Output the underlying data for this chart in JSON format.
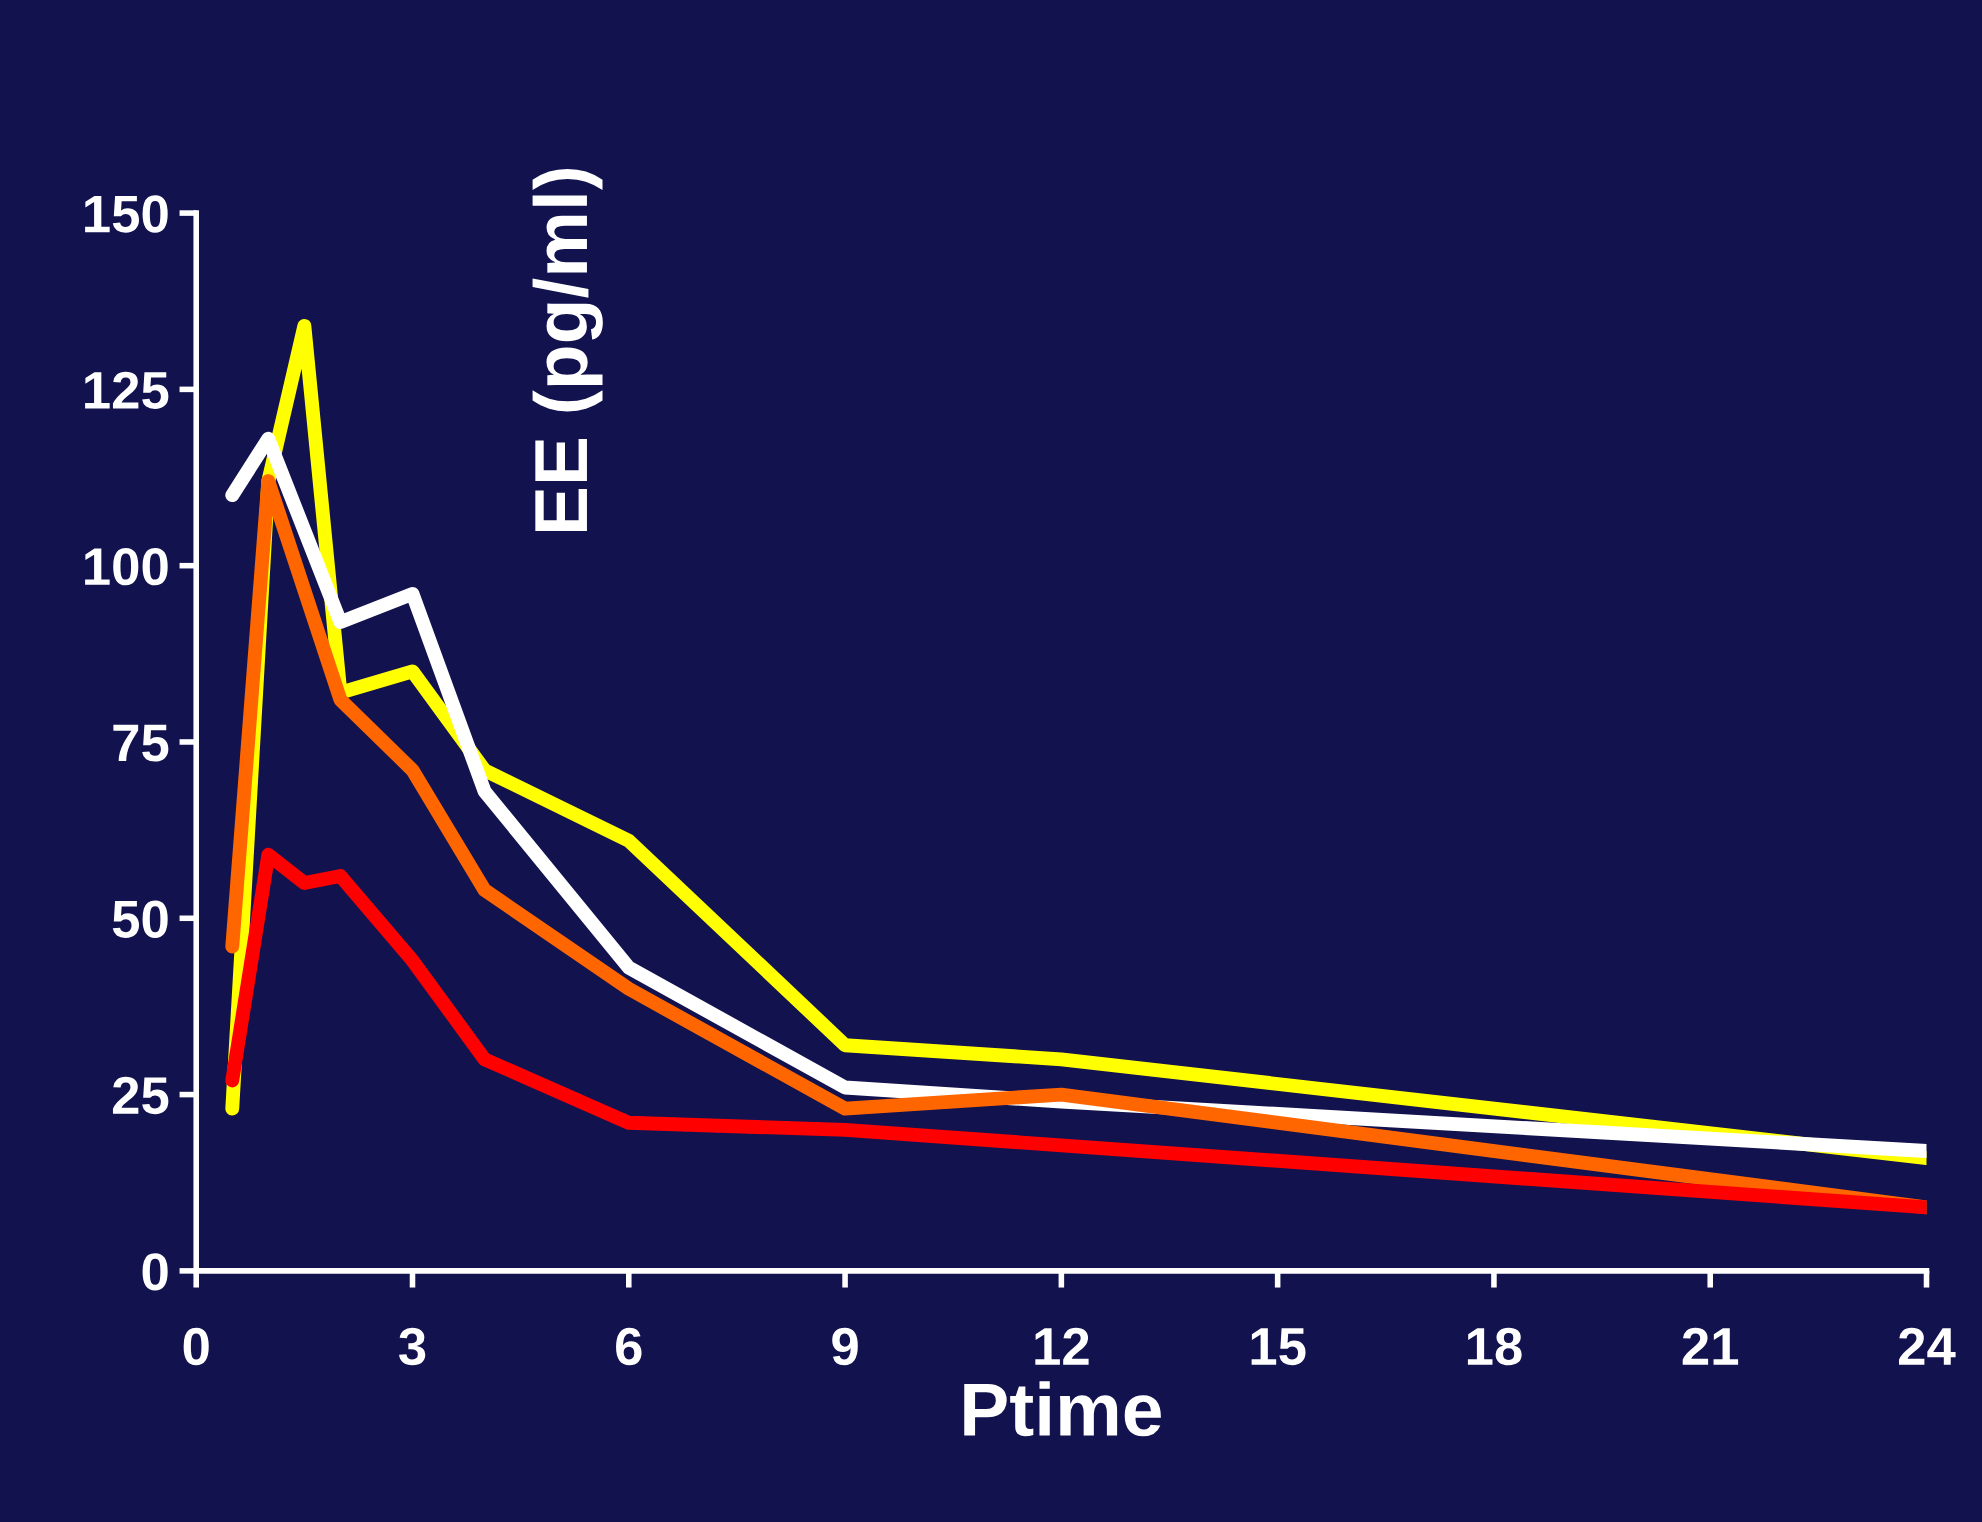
{
  "chart_data": {
    "type": "line",
    "xlabel": "Ptime",
    "ylabel": "EE (pg/ml)",
    "xlim": [
      0,
      24
    ],
    "xticks": [
      0,
      3,
      6,
      9,
      12,
      15,
      18,
      21,
      24
    ],
    "ylim": [
      0,
      150
    ],
    "yticks": [
      0,
      25,
      50,
      75,
      100,
      125,
      150
    ],
    "grid": false,
    "marker": "none",
    "line_style": "solid",
    "series": [
      {
        "color": "#ffff00",
        "x": [
          0.5,
          1,
          1.5,
          2,
          3,
          4,
          6,
          9,
          12,
          24
        ],
        "values": [
          23,
          112,
          134,
          82,
          85,
          71,
          61,
          32,
          30,
          16
        ]
      },
      {
        "color": "#ffffff",
        "x": [
          0.5,
          1,
          2,
          3,
          4,
          6,
          9,
          12,
          24
        ],
        "values": [
          110,
          118,
          92,
          96,
          68,
          43,
          26,
          24,
          17
        ]
      },
      {
        "color": "#ff6600",
        "x": [
          0.5,
          1,
          2,
          3,
          4,
          6,
          9,
          12,
          24
        ],
        "values": [
          46,
          112,
          81,
          71,
          54,
          40,
          23,
          25,
          9
        ]
      },
      {
        "color": "#ff0000",
        "x": [
          0.5,
          1,
          1.5,
          2,
          3,
          4,
          6,
          9,
          24
        ],
        "values": [
          27,
          59,
          55,
          56,
          44,
          30,
          21,
          20,
          9
        ]
      }
    ]
  }
}
